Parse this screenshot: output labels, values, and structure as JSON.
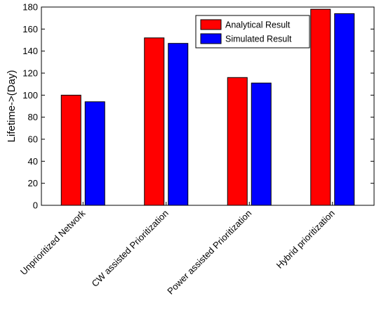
{
  "chart_data": {
    "type": "bar",
    "title": "",
    "xlabel": "",
    "ylabel": "Lifetime->(Day)",
    "ylim": [
      0,
      180
    ],
    "yticks": [
      0,
      20,
      40,
      60,
      80,
      100,
      120,
      140,
      160,
      180
    ],
    "categories": [
      "Unprioritized Network",
      "CW assisted Prioritization",
      "Power assisted Prioritization",
      "Hybrid prioritization"
    ],
    "series": [
      {
        "name": "Analytical Result",
        "color": "#ff0000",
        "values": [
          100,
          152,
          116,
          178
        ]
      },
      {
        "name": "Simulated Result",
        "color": "#0000ff",
        "values": [
          94,
          147,
          111,
          174
        ]
      }
    ],
    "legend_position": "top-right",
    "grid": false
  }
}
